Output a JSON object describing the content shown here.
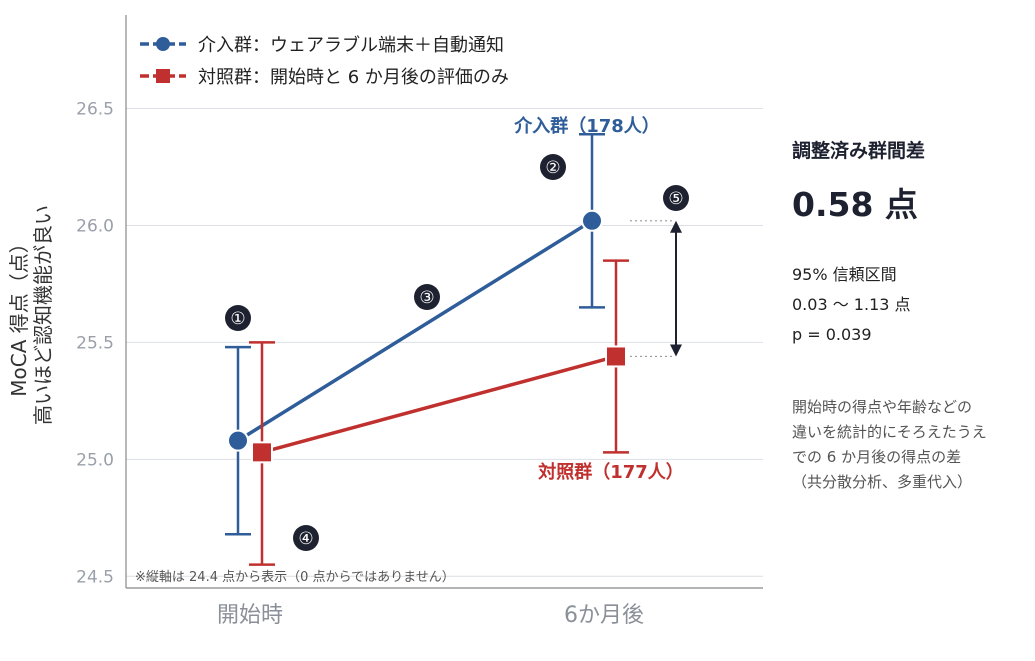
{
  "chart_data": {
    "type": "line",
    "categories": [
      "開始時",
      "6か月後"
    ],
    "ylabel": "MoCA 得点（点）",
    "ylabel_sub": "高いほど認知機能が良い",
    "ylim": [
      24.45,
      26.9
    ],
    "yticks": [
      24.5,
      25.0,
      25.5,
      26.0,
      26.5
    ],
    "ytick_labels": [
      "24.5",
      "25.0",
      "25.5",
      "26.0",
      "26.5"
    ],
    "grid": true,
    "legend_position": "top-left",
    "series": [
      {
        "name": "介入群：ウェアラブル端末＋自動通知",
        "label": "介入群（178人）",
        "color": "#2e5d9a",
        "marker": "circle",
        "values": [
          25.08,
          26.02
        ],
        "ci_low": [
          24.68,
          25.65
        ],
        "ci_high": [
          25.48,
          26.39
        ]
      },
      {
        "name": "対照群：開始時と 6 か月後の評価のみ",
        "label": "対照群（177人）",
        "color": "#c0302e",
        "marker": "square",
        "values": [
          25.03,
          25.44
        ],
        "ci_low": [
          24.55,
          25.03
        ],
        "ci_high": [
          25.5,
          25.85
        ]
      }
    ],
    "annotations": [
      "①",
      "②",
      "③",
      "④",
      "⑤"
    ],
    "footnote": "※縦軸は 24.4 点から表示（0 点からではありません）"
  },
  "summary": {
    "title": "調整済み群間差",
    "value": "0.58",
    "unit": "点",
    "ci_label": "95% 信頼区間",
    "ci_range": "0.03 〜 1.13 点",
    "p_value": "p = 0.039",
    "note_lines": [
      "開始時の得点や年齢などの",
      "違いを統計的にそろえたうえ",
      "での 6 か月後の得点の差",
      "（共分散分析、多重代入）"
    ]
  },
  "colors": {
    "intervention": "#2e5d9a",
    "control": "#c0302e",
    "badge": "#1e2230",
    "grid": "#dcdfe4",
    "tick_text": "#9aa0aa"
  }
}
